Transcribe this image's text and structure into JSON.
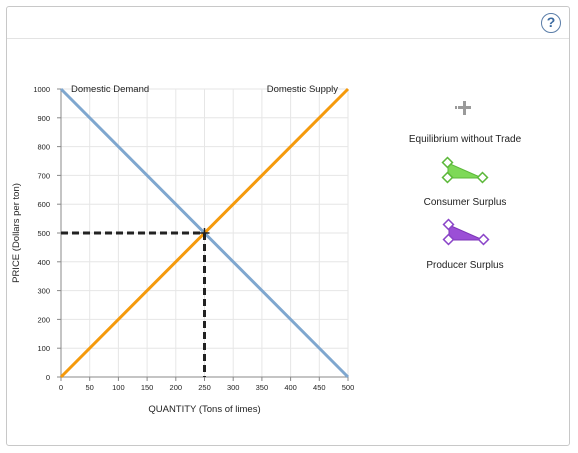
{
  "help": {
    "label": "?"
  },
  "palette": {
    "equilibrium": {
      "label": "Equilibrium without Trade",
      "icon": "equilibrium-plus-icon",
      "color": "#9a9a9a"
    },
    "consumer_surplus": {
      "label": "Consumer Surplus",
      "icon": "green-triangle-icon",
      "color": "#7ed957"
    },
    "producer_surplus": {
      "label": "Producer Surplus",
      "icon": "purple-triangle-icon",
      "color": "#9b4fd6"
    }
  },
  "chart_data": {
    "type": "line",
    "xlabel": "QUANTITY (Tons of limes)",
    "ylabel": "PRICE (Dollars per ton)",
    "xlim": [
      0,
      500
    ],
    "ylim": [
      0,
      1000
    ],
    "x_ticks": [
      0,
      50,
      100,
      150,
      200,
      250,
      300,
      350,
      400,
      450,
      500
    ],
    "y_ticks": [
      0,
      100,
      200,
      300,
      400,
      500,
      600,
      700,
      800,
      900,
      1000
    ],
    "grid": true,
    "series": [
      {
        "name": "Domestic Demand",
        "color": "#7fa7cf",
        "points": [
          [
            0,
            1000
          ],
          [
            500,
            0
          ]
        ]
      },
      {
        "name": "Domestic Supply",
        "color": "#f59a0c",
        "points": [
          [
            0,
            0
          ],
          [
            500,
            1000
          ]
        ]
      }
    ],
    "equilibrium": {
      "x": 250,
      "y": 500
    }
  }
}
